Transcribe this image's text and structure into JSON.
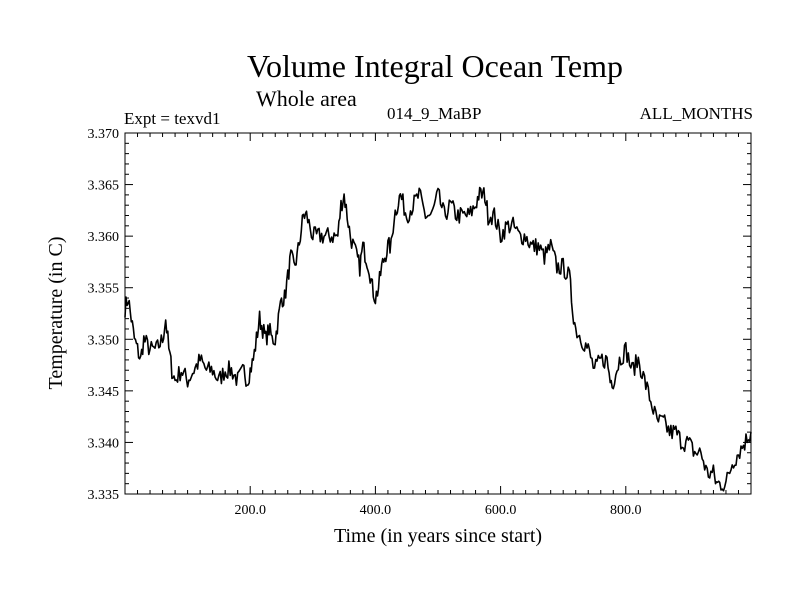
{
  "chart_data": {
    "type": "line",
    "title": "Volume Integral Ocean Temp",
    "subtitle": "Whole area",
    "expt_label": "Expt = texvd1",
    "case_label": "014_9_MaBP",
    "months_label": "ALL_MONTHS",
    "xlabel": "Time (in years since start)",
    "ylabel": "Temperature (in C)",
    "xlim": [
      0,
      1000
    ],
    "ylim": [
      3.335,
      3.37
    ],
    "xticks": [
      200,
      400,
      600,
      800
    ],
    "xtick_labels": [
      "200.0",
      "400.0",
      "600.0",
      "800.0"
    ],
    "yticks": [
      3.335,
      3.34,
      3.345,
      3.35,
      3.355,
      3.36,
      3.365,
      3.37
    ],
    "ytick_labels": [
      "3.335",
      "3.340",
      "3.345",
      "3.350",
      "3.355",
      "3.360",
      "3.365",
      "3.370"
    ],
    "series": [
      {
        "name": "volume integral ocean temperature",
        "color": "#000000",
        "x": [
          0,
          5,
          10,
          15,
          20,
          25,
          30,
          40,
          50,
          60,
          65,
          70,
          75,
          80,
          90,
          100,
          110,
          120,
          130,
          140,
          150,
          160,
          170,
          180,
          190,
          195,
          200,
          205,
          210,
          215,
          220,
          225,
          230,
          235,
          240,
          245,
          250,
          255,
          260,
          265,
          270,
          275,
          280,
          285,
          290,
          300,
          310,
          320,
          330,
          340,
          345,
          350,
          355,
          360,
          370,
          375,
          380,
          385,
          390,
          395,
          400,
          405,
          410,
          415,
          420,
          425,
          430,
          435,
          440,
          450,
          460,
          470,
          480,
          490,
          500,
          510,
          520,
          530,
          540,
          550,
          560,
          565,
          570,
          575,
          580,
          590,
          600,
          610,
          620,
          630,
          640,
          650,
          660,
          670,
          680,
          690,
          700,
          710,
          715,
          720,
          730,
          740,
          750,
          760,
          770,
          775,
          780,
          790,
          800,
          810,
          820,
          830,
          840,
          850,
          860,
          870,
          880,
          890,
          900,
          910,
          920,
          930,
          940,
          945,
          950,
          960,
          970,
          980,
          990,
          1000
        ],
        "values": [
          3.353,
          3.354,
          3.352,
          3.35,
          3.349,
          3.348,
          3.35,
          3.349,
          3.349,
          3.35,
          3.352,
          3.349,
          3.347,
          3.346,
          3.347,
          3.346,
          3.347,
          3.348,
          3.347,
          3.347,
          3.346,
          3.347,
          3.347,
          3.346,
          3.347,
          3.346,
          3.347,
          3.348,
          3.35,
          3.352,
          3.351,
          3.35,
          3.351,
          3.35,
          3.35,
          3.352,
          3.354,
          3.354,
          3.356,
          3.358,
          3.357,
          3.358,
          3.36,
          3.362,
          3.362,
          3.36,
          3.36,
          3.36,
          3.36,
          3.36,
          3.363,
          3.364,
          3.362,
          3.36,
          3.358,
          3.357,
          3.359,
          3.358,
          3.357,
          3.355,
          3.354,
          3.355,
          3.357,
          3.358,
          3.359,
          3.359,
          3.362,
          3.363,
          3.364,
          3.362,
          3.363,
          3.364,
          3.362,
          3.362,
          3.364,
          3.362,
          3.363,
          3.362,
          3.362,
          3.362,
          3.363,
          3.364,
          3.364,
          3.364,
          3.362,
          3.362,
          3.36,
          3.361,
          3.361,
          3.36,
          3.36,
          3.359,
          3.359,
          3.358,
          3.359,
          3.357,
          3.357,
          3.356,
          3.353,
          3.351,
          3.35,
          3.349,
          3.347,
          3.348,
          3.348,
          3.346,
          3.346,
          3.348,
          3.349,
          3.347,
          3.348,
          3.346,
          3.344,
          3.342,
          3.342,
          3.341,
          3.341,
          3.34,
          3.34,
          3.339,
          3.339,
          3.337,
          3.337,
          3.336,
          3.336,
          3.336,
          3.338,
          3.339,
          3.34,
          3.341
        ]
      }
    ]
  }
}
